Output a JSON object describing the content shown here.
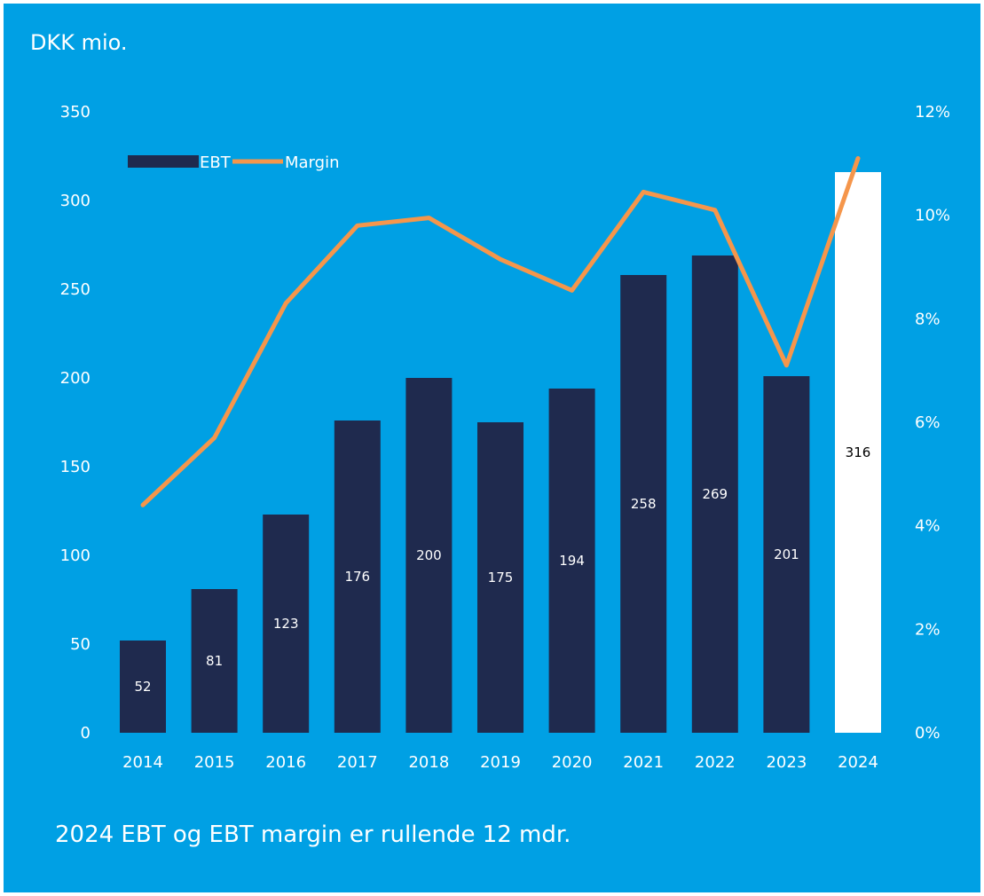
{
  "unit_label": "DKK mio.",
  "footnote": "2024 EBT og EBT margin er rullende 12 mdr.",
  "colors": {
    "background": "#00a0e4",
    "bar": "#1f2a4e",
    "bar_highlight": "#ffffff",
    "line": "#f5964b",
    "text": "#ffffff",
    "label_dark": "#000000"
  },
  "chart_data": {
    "type": "bar",
    "categories": [
      "2014",
      "2015",
      "2016",
      "2017",
      "2018",
      "2019",
      "2020",
      "2021",
      "2022",
      "2023",
      "2024"
    ],
    "series": [
      {
        "name": "EBT",
        "type": "bar",
        "axis": "left",
        "values": [
          52,
          81,
          123,
          176,
          200,
          175,
          194,
          258,
          269,
          201,
          316
        ],
        "labels": [
          "52",
          "81",
          "123",
          "176",
          "200",
          "175",
          "194",
          "258",
          "269",
          "201",
          "316"
        ]
      },
      {
        "name": "Margin",
        "type": "line",
        "axis": "right",
        "values": [
          4.4,
          5.7,
          8.3,
          9.8,
          9.95,
          9.15,
          8.55,
          10.45,
          10.1,
          7.1,
          11.1
        ]
      }
    ],
    "highlight_category": "2024",
    "y_left": {
      "min": 0,
      "max": 350,
      "ticks": [
        0,
        50,
        100,
        150,
        200,
        250,
        300,
        350
      ],
      "tick_labels": [
        "0",
        "50",
        "100",
        "150",
        "200",
        "250",
        "300",
        "350"
      ]
    },
    "y_right": {
      "min": 0,
      "max": 12,
      "ticks": [
        0,
        2,
        4,
        6,
        8,
        10,
        12
      ],
      "tick_labels": [
        "0%",
        "2%",
        "4%",
        "6%",
        "8%",
        "10%",
        "12%"
      ]
    },
    "grid": false,
    "legend": {
      "position": "top-left",
      "items": [
        "EBT",
        "Margin"
      ]
    }
  }
}
